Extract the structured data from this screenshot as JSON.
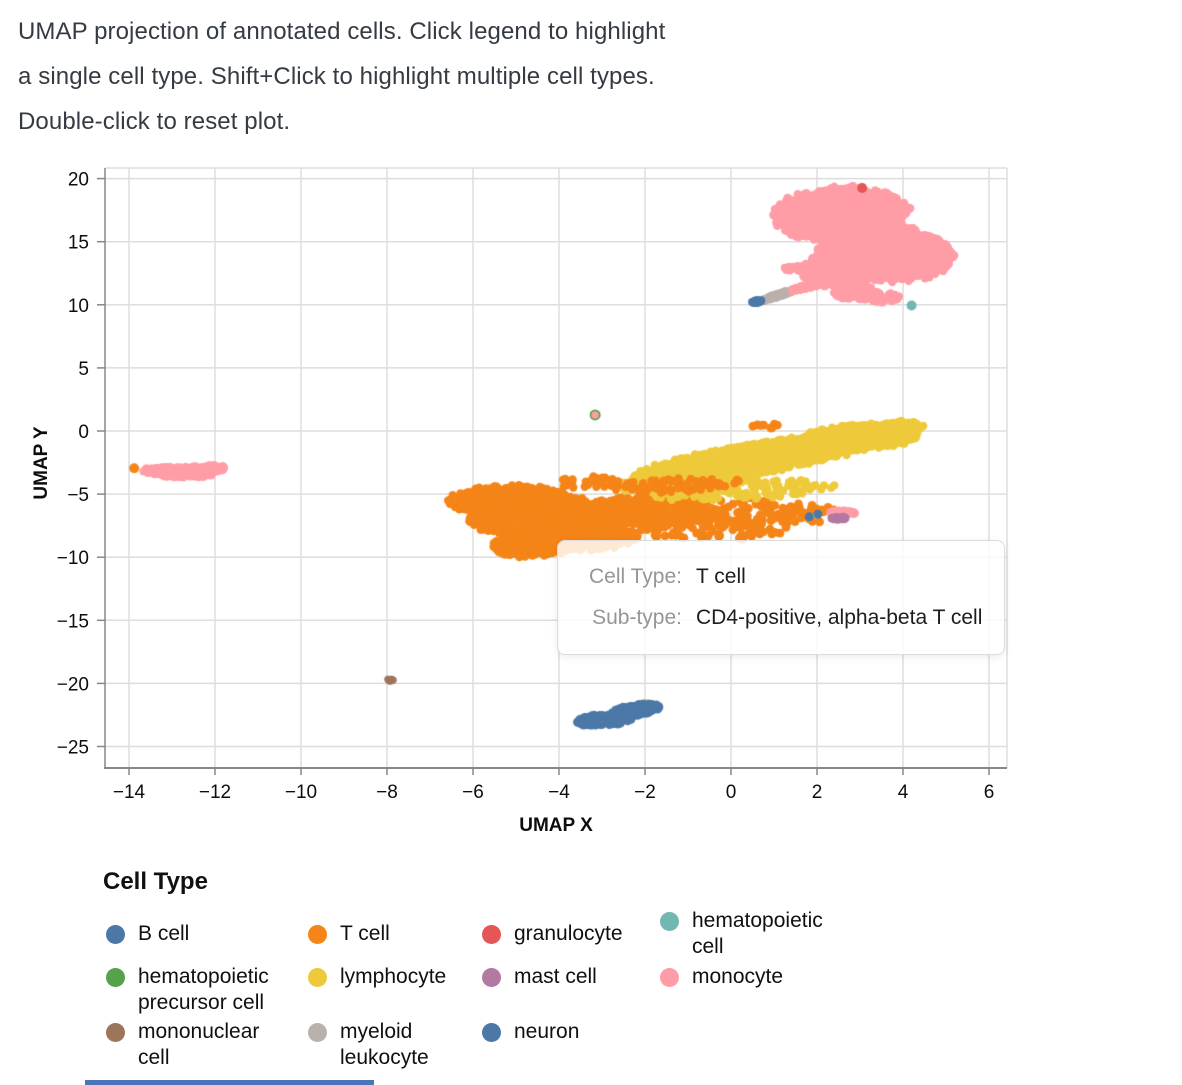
{
  "header": {
    "lines": [
      "UMAP projection of annotated cells. Click legend to highlight",
      "a single cell type. Shift+Click to highlight multiple cell types.",
      "Double-click to reset plot."
    ]
  },
  "plot": {
    "x_axis": {
      "title": "UMAP X",
      "ticks": [
        -14,
        -12,
        -10,
        -8,
        -6,
        -4,
        -2,
        0,
        2,
        4,
        6
      ]
    },
    "y_axis": {
      "title": "UMAP Y",
      "ticks": [
        20,
        15,
        10,
        5,
        0,
        -5,
        -10,
        -15,
        -20,
        -25
      ]
    }
  },
  "tooltip": {
    "rows": [
      {
        "label": "Cell Type:",
        "value": "T cell"
      },
      {
        "label": "Sub-type:",
        "value": "CD4-positive, alpha-beta T cell"
      }
    ]
  },
  "legend": {
    "title": "Cell Type",
    "items": [
      {
        "label": "B cell",
        "lines": [
          "B cell"
        ],
        "color": "#4C78A8"
      },
      {
        "label": "hematopoietic precursor cell",
        "lines": [
          "hematopoietic",
          "precursor cell"
        ],
        "color": "#54A24B"
      },
      {
        "label": "mononuclear cell",
        "lines": [
          "mononuclear",
          "cell"
        ],
        "color": "#9D755D"
      },
      {
        "label": "T cell",
        "lines": [
          "T cell"
        ],
        "color": "#F58518"
      },
      {
        "label": "lymphocyte",
        "lines": [
          "lymphocyte"
        ],
        "color": "#EECA3B"
      },
      {
        "label": "myeloid leukocyte",
        "lines": [
          "myeloid",
          "leukocyte"
        ],
        "color": "#BAB0AC"
      },
      {
        "label": "granulocyte",
        "lines": [
          "granulocyte"
        ],
        "color": "#E45756"
      },
      {
        "label": "mast cell",
        "lines": [
          "mast cell"
        ],
        "color": "#B279A2"
      },
      {
        "label": "neuron",
        "lines": [
          "neuron"
        ],
        "color": "#4C78A8"
      },
      {
        "label": "hematopoietic cell",
        "lines": [
          "hematopoietic",
          "cell"
        ],
        "color": "#72B7B2"
      },
      {
        "label": "monocyte",
        "lines": [
          "monocyte"
        ],
        "color": "#FF9DA6"
      }
    ]
  },
  "style": {
    "grid_color": "#dddddd",
    "axis_color": "#888888",
    "tick_label_color": "#0d0d0d",
    "header_text_color": "#353b43",
    "tooltip_label_color": "#969696",
    "tooltip_value_color": "#1d1d1d",
    "bottom_edge_color": "#4D74B8"
  },
  "chart_data": {
    "type": "scatter",
    "title": "UMAP projection of annotated cells. Click legend to highlight a single cell type. Shift+Click to highlight multiple cell types. Double-click to reset plot.",
    "xlabel": "UMAP X",
    "ylabel": "UMAP Y",
    "xlim": [
      -14.56,
      6.42
    ],
    "ylim": [
      -26.7,
      20.84
    ],
    "x_ticks": [
      -14,
      -12,
      -10,
      -8,
      -6,
      -4,
      -2,
      0,
      2,
      4,
      6
    ],
    "y_ticks": [
      20,
      15,
      10,
      5,
      0,
      -5,
      -10,
      -15,
      -20,
      -25
    ],
    "grid": true,
    "legend_position": "bottom",
    "categories": [
      {
        "name": "B cell",
        "color": "#4C78A8"
      },
      {
        "name": "T cell",
        "color": "#F58518"
      },
      {
        "name": "granulocyte",
        "color": "#E45756"
      },
      {
        "name": "hematopoietic cell",
        "color": "#72B7B2"
      },
      {
        "name": "hematopoietic precursor cell",
        "color": "#54A24B"
      },
      {
        "name": "lymphocyte",
        "color": "#EECA3B"
      },
      {
        "name": "mast cell",
        "color": "#B279A2"
      },
      {
        "name": "monocyte",
        "color": "#FF9DA6"
      },
      {
        "name": "mononuclear cell",
        "color": "#9D755D"
      },
      {
        "name": "myeloid leukocyte",
        "color": "#BAB0AC"
      },
      {
        "name": "neuron",
        "color": "#4C78A8"
      }
    ],
    "layers": [
      {
        "cell_type": "myeloid leukocyte",
        "color": "#BAB0AC",
        "blobs": [
          {
            "cx": 1.12,
            "cy": 10.78,
            "rx": 0.62,
            "ry": 0.1,
            "rot": 50,
            "n": 110,
            "pr": 4
          }
        ]
      },
      {
        "cell_type": "neuron",
        "color": "#4C78A8",
        "blobs": [
          {
            "cx": 0.6,
            "cy": 10.25,
            "rx": 0.18,
            "ry": 0.09,
            "rot": 50,
            "n": 30,
            "pr": 4
          }
        ]
      },
      {
        "cell_type": "monocyte",
        "color": "#FF9DA6",
        "blobs": [
          {
            "cx": 2.55,
            "cy": 17.2,
            "rx": 1.5,
            "ry": 2.1,
            "rot": -10,
            "n": 1500,
            "pr": 4.2
          },
          {
            "cx": 3.6,
            "cy": 14.1,
            "rx": 1.5,
            "ry": 2.2,
            "rot": 10,
            "n": 1500,
            "pr": 4.2
          },
          {
            "cx": 2.45,
            "cy": 12.7,
            "rx": 0.85,
            "ry": 1.25,
            "rot": 0,
            "n": 380,
            "pr": 4.2
          },
          {
            "cx": 1.95,
            "cy": 11.65,
            "rx": 0.8,
            "ry": 0.16,
            "rot": 47,
            "n": 130,
            "pr": 4
          },
          {
            "cx": 1.55,
            "cy": 12.85,
            "rx": 0.3,
            "ry": 0.24,
            "rot": 0,
            "n": 45,
            "pr": 4
          },
          {
            "cx": 2.9,
            "cy": 10.95,
            "rx": 0.5,
            "ry": 0.55,
            "rot": 0,
            "n": 90,
            "pr": 4.2
          },
          {
            "cx": 3.45,
            "cy": 10.6,
            "rx": 0.45,
            "ry": 0.45,
            "rot": 0,
            "n": 70,
            "pr": 4.2
          }
        ],
        "dots": [
          {
            "x": 5.05,
            "y": 14.5,
            "r": 4
          }
        ]
      },
      {
        "cell_type": "granulocyte",
        "color": "#E45756",
        "dots": [
          {
            "x": 3.05,
            "y": 19.25,
            "r": 5
          }
        ]
      },
      {
        "cell_type": "hematopoietic cell",
        "color": "#72B7B2",
        "dots": [
          {
            "x": 4.2,
            "y": 9.95,
            "r": 5
          }
        ]
      },
      {
        "cell_type": "T cell",
        "color": "#F58518",
        "dots": [
          {
            "x": -13.88,
            "y": -2.95,
            "r": 5
          }
        ]
      },
      {
        "cell_type": "monocyte",
        "color": "#FF9DA6",
        "blobs": [
          {
            "cx": -12.8,
            "cy": -3.25,
            "rx": 0.82,
            "ry": 0.42,
            "rot": -4,
            "n": 280,
            "pr": 4.2
          },
          {
            "cx": -12.15,
            "cy": -2.95,
            "rx": 0.38,
            "ry": 0.25,
            "rot": 0,
            "n": 70,
            "pr": 4.2
          }
        ],
        "dots": [
          {
            "x": -13.6,
            "y": -3.0,
            "r": 4.5
          }
        ]
      },
      {
        "cell_type": "T cell",
        "color": "#F58518",
        "blobs": [
          {
            "cx": -5.0,
            "cy": -5.7,
            "rx": 1.55,
            "ry": 1.3,
            "rot": -15,
            "n": 900,
            "pr": 4.2
          },
          {
            "cx": -4.3,
            "cy": -7.0,
            "rx": 1.7,
            "ry": 1.6,
            "rot": 0,
            "n": 1100,
            "pr": 4.2
          },
          {
            "cx": -4.6,
            "cy": -9.1,
            "rx": 1.0,
            "ry": 0.85,
            "rot": 20,
            "n": 300,
            "pr": 4.2
          },
          {
            "cx": -3.4,
            "cy": -8.4,
            "rx": 1.2,
            "ry": 1.0,
            "rot": 0,
            "n": 350,
            "pr": 4.2
          },
          {
            "cx": -1.9,
            "cy": -6.3,
            "rx": 1.5,
            "ry": 1.15,
            "rot": 0,
            "n": 380,
            "pr": 4.2
          },
          {
            "cx": -0.1,
            "cy": -6.4,
            "rx": 2.2,
            "ry": 1.2,
            "rot": 0,
            "n": 150,
            "pr": 4.4
          },
          {
            "cx": -0.5,
            "cy": -7.9,
            "rx": 1.8,
            "ry": 0.75,
            "rot": 0,
            "n": 60,
            "pr": 4.4
          },
          {
            "cx": 1.7,
            "cy": -6.6,
            "rx": 0.8,
            "ry": 0.8,
            "rot": 0,
            "n": 25,
            "pr": 4.4
          }
        ]
      },
      {
        "cell_type": "lymphocyte",
        "color": "#EECA3B",
        "blobs": [
          {
            "cx": 0.55,
            "cy": -2.2,
            "rx": 3.2,
            "ry": 1.05,
            "rot": 33,
            "n": 1700,
            "pr": 4.2
          },
          {
            "cx": 3.0,
            "cy": -0.5,
            "rx": 1.35,
            "ry": 0.95,
            "rot": 20,
            "n": 700,
            "pr": 4.2
          },
          {
            "cx": 3.95,
            "cy": 0.35,
            "rx": 0.5,
            "ry": 0.45,
            "rot": 0,
            "n": 90,
            "pr": 4.2
          },
          {
            "cx": 0.2,
            "cy": -4.7,
            "rx": 2.2,
            "ry": 0.75,
            "rot": 12,
            "n": 130,
            "pr": 4.2
          },
          {
            "cx": -2.15,
            "cy": -4.35,
            "rx": 0.6,
            "ry": 0.45,
            "rot": 0,
            "n": 45,
            "pr": 4.2
          }
        ]
      },
      {
        "cell_type": "T cell",
        "color": "#F58518",
        "blobs": [
          {
            "cx": -1.3,
            "cy": -4.3,
            "rx": 1.6,
            "ry": 0.55,
            "rot": 8,
            "n": 70,
            "pr": 4.2
          },
          {
            "cx": -3.3,
            "cy": -4.05,
            "rx": 0.8,
            "ry": 0.45,
            "rot": 0,
            "n": 40,
            "pr": 4.2
          },
          {
            "cx": 0.7,
            "cy": 0.55,
            "rx": 0.5,
            "ry": 0.4,
            "rot": 0,
            "n": 8,
            "pr": 4.4
          }
        ]
      },
      {
        "cell_type": "monocyte",
        "color": "#FF9DA6",
        "blobs": [
          {
            "cx": 2.62,
            "cy": -6.45,
            "rx": 0.32,
            "ry": 0.15,
            "rot": -12,
            "n": 70,
            "pr": 4
          }
        ]
      },
      {
        "cell_type": "mast cell",
        "color": "#B279A2",
        "blobs": [
          {
            "cx": 2.52,
            "cy": -6.9,
            "rx": 0.18,
            "ry": 0.13,
            "rot": 0,
            "n": 30,
            "pr": 4
          }
        ]
      },
      {
        "cell_type": "neuron",
        "color": "#4C78A8",
        "dots": [
          {
            "x": 1.82,
            "y": -6.8,
            "r": 4.5
          },
          {
            "x": 2.02,
            "y": -6.6,
            "r": 4.5
          }
        ]
      },
      {
        "cell_type": "lymphocyte",
        "color": "#EECA3B",
        "dots": [
          {
            "x": -1.93,
            "y": -21.6,
            "r": 4.5
          }
        ]
      },
      {
        "cell_type": "B cell",
        "color": "#4C78A8",
        "blobs": [
          {
            "cx": -2.95,
            "cy": -22.9,
            "rx": 0.62,
            "ry": 0.42,
            "rot": 12,
            "n": 220,
            "pr": 4.2
          },
          {
            "cx": -2.3,
            "cy": -22.2,
            "rx": 0.5,
            "ry": 0.38,
            "rot": 25,
            "n": 160,
            "pr": 4.2
          },
          {
            "cx": -1.97,
            "cy": -21.9,
            "rx": 0.3,
            "ry": 0.3,
            "rot": 0,
            "n": 90,
            "pr": 4.2
          },
          {
            "cx": -3.32,
            "cy": -23.25,
            "rx": 0.18,
            "ry": 0.12,
            "rot": 0,
            "n": 14,
            "pr": 4
          }
        ]
      },
      {
        "cell_type": "mononuclear cell",
        "color": "#9D755D",
        "blobs": [
          {
            "cx": -7.95,
            "cy": -19.75,
            "rx": 0.1,
            "ry": 0.1,
            "rot": 0,
            "n": 14,
            "pr": 3.5
          }
        ]
      },
      {
        "cell_type": "hematopoietic precursor cell",
        "color": "#54A24B",
        "dots": [
          {
            "x": -3.16,
            "y": 1.27,
            "r": 5.5
          }
        ]
      },
      {
        "cell_type": "monocyte",
        "color": "#FF9DA6",
        "dots": [
          {
            "x": -3.16,
            "y": 1.27,
            "r": 3.8
          }
        ]
      }
    ]
  }
}
